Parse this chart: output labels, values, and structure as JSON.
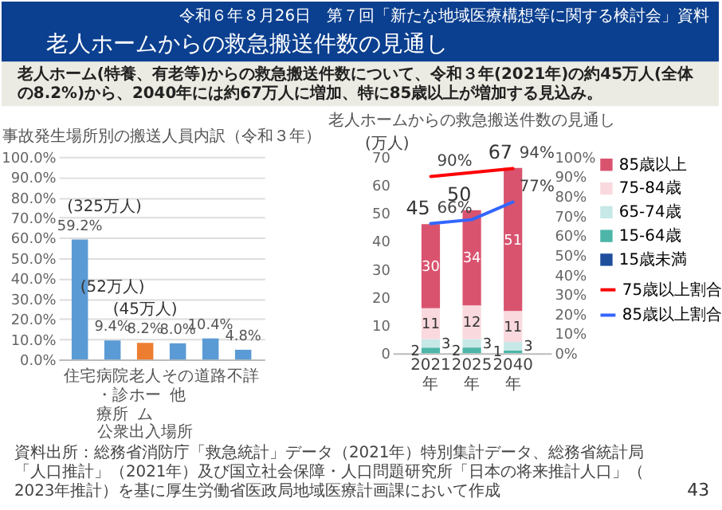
{
  "chart_data": [
    {
      "type": "other",
      "title": "老人ホームからの救急搬送件数の見通し",
      "subtitle": "老人ホーム(特養、有老等)からの救急搬送件数について、令和３年(2021年)の約45万人(全体の8.2%)から、2040年には約67万人に増加、特に85歳以上が増加する見込み。",
      "annotations": [
        "令和６年８月26日　第７回「新たな地域医療構想等に関する検討会」資料",
        "資料出所：総務省消防庁「救急統計」データ（2021年）特別集計データ、総務省統計局「人口推計」（2021年）及び国立社会保障・人口問題研究所「日本の将来推計人口」（2023年推計）を基に厚生労働省医政局地域医療計画課において作成",
        "43"
      ]
    },
    {
      "type": "bar",
      "title": "事故発生場所別の搬送人員内訳（令和３年）",
      "categories": [
        "住宅",
        "病院・診療所",
        "老人ホーム",
        "その他",
        "道路",
        "不詳"
      ],
      "values": [
        59.2,
        9.4,
        8.2,
        8.0,
        10.4,
        4.8
      ],
      "colors": [
        "#5b9bd5",
        "#5b9bd5",
        "#ed7d31",
        "#5b9bd5",
        "#5b9bd5",
        "#5b9bd5"
      ],
      "value_labels": [
        "59.2%",
        "9.4%",
        "8.2%",
        "8.0%",
        "10.4%",
        "4.8%"
      ],
      "ylim": [
        0,
        100
      ],
      "yticks": [
        {
          "value": 0,
          "label": "0.0%"
        },
        {
          "value": 10,
          "label": "10.0%"
        },
        {
          "value": 20,
          "label": "20.0%"
        },
        {
          "value": 30,
          "label": "30.0%"
        },
        {
          "value": 40,
          "label": "40.0%"
        },
        {
          "value": 50,
          "label": "50.0%"
        },
        {
          "value": 60,
          "label": "60.0%"
        },
        {
          "value": 70,
          "label": "70.0%"
        },
        {
          "value": 80,
          "label": "80.0%"
        },
        {
          "value": 90,
          "label": "90.0%"
        },
        {
          "value": 100,
          "label": "100.0%"
        }
      ],
      "grid": "y",
      "annotations": [
        {
          "text": "(325万人)",
          "x": "住宅",
          "y": 59.2
        },
        {
          "text": "(52万人)",
          "x": "病院・診療所",
          "y": 9.4
        },
        {
          "text": "(45万人)",
          "x": "老人ホーム",
          "y": 8.2
        },
        "公衆出入場所"
      ]
    },
    {
      "type": "bar",
      "title": "老人ホームからの救急搬送件数の見通し",
      "stacked": true,
      "categories": [
        "2021年",
        "2025年",
        "2040年"
      ],
      "ylabel": "(万人)",
      "ylim": [
        0,
        70
      ],
      "yticks": [
        0,
        10,
        20,
        30,
        40,
        50,
        60,
        70
      ],
      "y2lim": [
        0,
        100
      ],
      "y2ticks": [
        {
          "value": 0,
          "label": "0%"
        },
        {
          "value": 10,
          "label": "10%"
        },
        {
          "value": 20,
          "label": "20%"
        },
        {
          "value": 30,
          "label": "30%"
        },
        {
          "value": 40,
          "label": "40%"
        },
        {
          "value": 50,
          "label": "50%"
        },
        {
          "value": 60,
          "label": "60%"
        },
        {
          "value": 70,
          "label": "70%"
        },
        {
          "value": 80,
          "label": "80%"
        },
        {
          "value": 90,
          "label": "90%"
        },
        {
          "value": 100,
          "label": "100%"
        }
      ],
      "legend": "right",
      "totals": [
        "45",
        "50",
        "67"
      ],
      "series": [
        {
          "name": "15歳未満",
          "color": "#1f4e9c",
          "values": [
            0,
            0,
            0
          ]
        },
        {
          "name": "15-64歳",
          "color": "#4db6a8",
          "values": [
            2,
            2,
            1
          ],
          "value_labels": [
            "2",
            "2",
            "1"
          ]
        },
        {
          "name": "65-74歳",
          "color": "#c6e8e6",
          "values": [
            3,
            3,
            3
          ],
          "value_labels": [
            "3",
            "3",
            "3"
          ]
        },
        {
          "name": "75-84歳",
          "color": "#f9d9de",
          "values": [
            11,
            12,
            11
          ],
          "value_labels": [
            "11",
            "12",
            "11"
          ]
        },
        {
          "name": "85歳以上",
          "color": "#d9536f",
          "values": [
            30,
            34,
            51
          ],
          "value_labels": [
            "30",
            "34",
            "51"
          ]
        },
        {
          "name": "75歳以上割合",
          "type": "line",
          "axis": "y2",
          "color": "#ff0000",
          "values": [
            90,
            92,
            94
          ],
          "value_labels": [
            "90%",
            null,
            "94%"
          ]
        },
        {
          "name": "85歳以上割合",
          "type": "line",
          "axis": "y2",
          "color": "#3366ff",
          "values": [
            66,
            68,
            77
          ],
          "value_labels": [
            "66%",
            null,
            "77%"
          ]
        }
      ]
    }
  ]
}
